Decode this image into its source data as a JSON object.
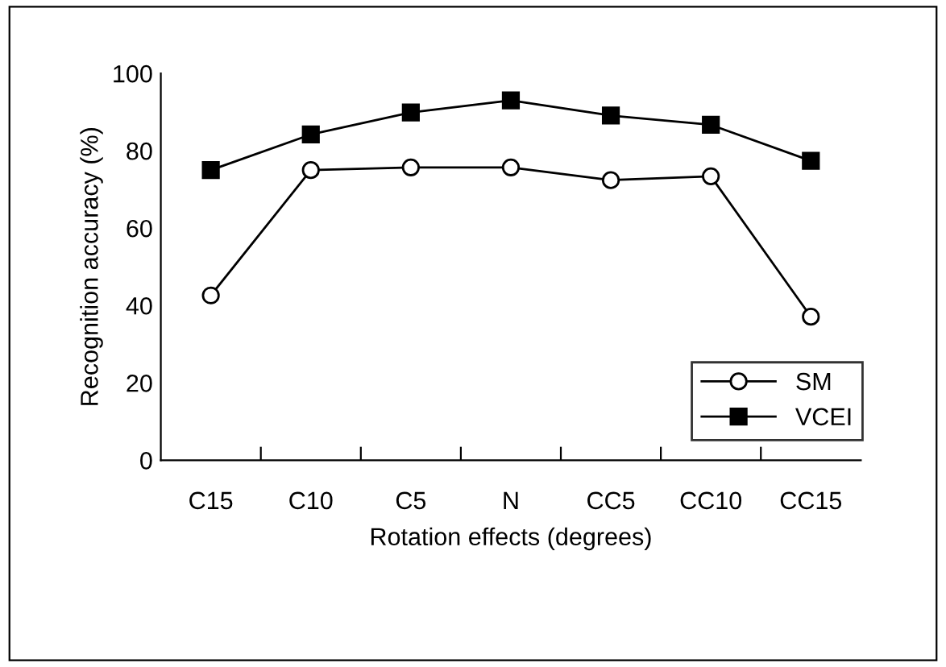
{
  "chart_data": {
    "type": "line",
    "xlabel": "Rotation effects (degrees)",
    "ylabel": "Recognition accuracy (%)",
    "categories": [
      "C15",
      "C10",
      "C5",
      "N",
      "CC5",
      "CC10",
      "CC15"
    ],
    "series": [
      {
        "name": "SM",
        "color": "#000000",
        "marker": "circle",
        "values": [
          42.6,
          75.0,
          75.7,
          75.7,
          72.4,
          73.4,
          37.1
        ]
      },
      {
        "name": "VCEI",
        "color": "#000000",
        "marker": "square",
        "values": [
          75.0,
          84.2,
          89.9,
          93.0,
          89.1,
          86.7,
          77.4
        ]
      }
    ],
    "ylim": [
      0,
      100
    ],
    "yticks": [
      0,
      20,
      40,
      60,
      80,
      100
    ],
    "grid": false,
    "legend": "bottom right"
  }
}
